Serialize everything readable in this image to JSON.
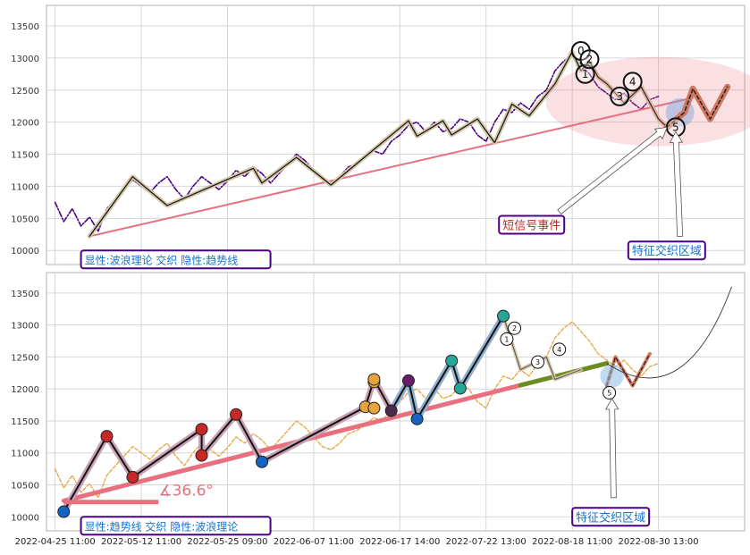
{
  "chart_data": [
    {
      "type": "line",
      "panel": "top",
      "y_ticks": [
        10000,
        10500,
        11000,
        11500,
        12000,
        12500,
        13000,
        13500
      ],
      "ylim": [
        9780,
        13820
      ],
      "grid": true,
      "series": [
        {
          "style": "dash-dot",
          "color": "#4b0082",
          "values": [
            [
              0,
              10750
            ],
            [
              1,
              10450
            ],
            [
              2,
              10650
            ],
            [
              3,
              10380
            ],
            [
              4,
              10520
            ],
            [
              5,
              10300
            ],
            [
              6,
              10650
            ],
            [
              7,
              10800
            ],
            [
              8,
              10950
            ],
            [
              9,
              11100
            ],
            [
              10,
              11000
            ],
            [
              11,
              10900
            ],
            [
              12,
              11050
            ],
            [
              13,
              11150
            ],
            [
              14,
              10950
            ],
            [
              15,
              10800
            ],
            [
              16,
              11000
            ],
            [
              17,
              11150
            ],
            [
              18,
              11050
            ],
            [
              19,
              10950
            ],
            [
              20,
              11080
            ],
            [
              21,
              11250
            ],
            [
              22,
              11150
            ],
            [
              23,
              11300
            ],
            [
              24,
              11200
            ],
            [
              25,
              11050
            ],
            [
              26,
              11200
            ],
            [
              27,
              11350
            ],
            [
              28,
              11500
            ],
            [
              29,
              11400
            ],
            [
              30,
              11250
            ],
            [
              31,
              11100
            ],
            [
              32,
              11050
            ],
            [
              33,
              11150
            ],
            [
              34,
              11300
            ],
            [
              35,
              11350
            ],
            [
              36,
              11450
            ],
            [
              37,
              11550
            ],
            [
              38,
              11500
            ],
            [
              39,
              11700
            ],
            [
              40,
              11800
            ],
            [
              41,
              11950
            ],
            [
              42,
              12000
            ],
            [
              43,
              11850
            ],
            [
              44,
              12000
            ],
            [
              45,
              11850
            ],
            [
              46,
              11900
            ],
            [
              47,
              12050
            ],
            [
              48,
              12000
            ],
            [
              49,
              11800
            ],
            [
              50,
              11700
            ],
            [
              51,
              12000
            ],
            [
              52,
              12200
            ],
            [
              53,
              12150
            ],
            [
              54,
              12300
            ],
            [
              55,
              12200
            ],
            [
              56,
              12400
            ],
            [
              57,
              12500
            ],
            [
              58,
              12800
            ],
            [
              59,
              12950
            ],
            [
              60,
              13050
            ],
            [
              61,
              12900
            ],
            [
              62,
              12750
            ],
            [
              63,
              12550
            ],
            [
              64,
              12450
            ],
            [
              65,
              12350
            ],
            [
              66,
              12450
            ],
            [
              67,
              12300
            ],
            [
              68,
              12200
            ],
            [
              69,
              12350
            ],
            [
              70,
              12400
            ]
          ]
        }
      ],
      "wave_points": [
        [
          4,
          10220
        ],
        [
          9,
          11150
        ],
        [
          13,
          10700
        ],
        [
          23,
          11280
        ],
        [
          24,
          11050
        ],
        [
          28,
          11450
        ],
        [
          32,
          11020
        ],
        [
          41,
          12020
        ],
        [
          42,
          11780
        ],
        [
          45,
          12020
        ],
        [
          46,
          11800
        ],
        [
          49,
          12050
        ],
        [
          51,
          11680
        ],
        [
          53,
          12280
        ],
        [
          55,
          12100
        ],
        [
          58,
          12600
        ],
        [
          60,
          13100
        ],
        [
          61,
          12800
        ],
        [
          62,
          12950
        ],
        [
          63,
          12700
        ],
        [
          64,
          12600
        ],
        [
          66,
          12300
        ],
        [
          68,
          12550
        ],
        [
          70,
          12050
        ],
        [
          71,
          11920
        ],
        [
          73,
          12150
        ],
        [
          74,
          12520
        ],
        [
          76,
          12050
        ],
        [
          78,
          12550
        ]
      ],
      "trend_line": [
        [
          4,
          10220
        ],
        [
          74,
          12380
        ]
      ],
      "wave_labels": [
        {
          "text": "0",
          "x": 61,
          "y": 13110
        },
        {
          "text": "1",
          "x": 61.5,
          "y": 12750
        },
        {
          "text": "2",
          "x": 62,
          "y": 12980
        },
        {
          "text": "3",
          "x": 65.5,
          "y": 12400
        },
        {
          "text": "4",
          "x": 67,
          "y": 12630
        },
        {
          "text": "5",
          "x": 72,
          "y": 11920
        }
      ],
      "annotations": [
        {
          "text": "短信号事件",
          "x": 51.5,
          "y": 10400
        },
        {
          "text": "特征交织区域",
          "x": 66.5,
          "y": 10000
        },
        {
          "text": "显性:波浪理论 交织 隐性:趋势线",
          "x": 3,
          "y": 9860
        }
      ]
    },
    {
      "type": "line",
      "panel": "bottom",
      "x_tick_labels": [
        "2022-04-25 11:00",
        "2022-05-12 11:00",
        "2022-05-25 09:00",
        "2022-06-07 11:00",
        "2022-06-17 14:00",
        "2022-07-22 13:00",
        "2022-08-18 11:00",
        "2022-08-30 13:00"
      ],
      "y_ticks": [
        10000,
        10500,
        11000,
        11500,
        12000,
        12500,
        13000,
        13500
      ],
      "ylim": [
        9780,
        13820
      ],
      "grid": true,
      "series": [
        {
          "style": "dashed",
          "color": "#e8a33d",
          "values": [
            [
              0,
              10750
            ],
            [
              1,
              10450
            ],
            [
              2,
              10650
            ],
            [
              3,
              10380
            ],
            [
              4,
              10520
            ],
            [
              5,
              10300
            ],
            [
              6,
              10650
            ],
            [
              7,
              10800
            ],
            [
              8,
              10950
            ],
            [
              9,
              11100
            ],
            [
              10,
              11000
            ],
            [
              11,
              10900
            ],
            [
              12,
              11050
            ],
            [
              13,
              11150
            ],
            [
              14,
              10950
            ],
            [
              15,
              10800
            ],
            [
              16,
              11000
            ],
            [
              17,
              11150
            ],
            [
              18,
              11050
            ],
            [
              19,
              10950
            ],
            [
              20,
              11080
            ],
            [
              21,
              11250
            ],
            [
              22,
              11150
            ],
            [
              23,
              11300
            ],
            [
              24,
              11200
            ],
            [
              25,
              11050
            ],
            [
              26,
              11200
            ],
            [
              27,
              11350
            ],
            [
              28,
              11500
            ],
            [
              29,
              11400
            ],
            [
              30,
              11250
            ],
            [
              31,
              11100
            ],
            [
              32,
              11050
            ],
            [
              33,
              11150
            ],
            [
              34,
              11300
            ],
            [
              35,
              11350
            ],
            [
              36,
              11450
            ],
            [
              37,
              11550
            ],
            [
              38,
              11500
            ],
            [
              39,
              11700
            ],
            [
              40,
              11800
            ],
            [
              41,
              11950
            ],
            [
              42,
              12000
            ],
            [
              43,
              11850
            ],
            [
              44,
              12000
            ],
            [
              45,
              11850
            ],
            [
              46,
              11900
            ],
            [
              47,
              12050
            ],
            [
              48,
              12000
            ],
            [
              49,
              11800
            ],
            [
              50,
              11700
            ],
            [
              51,
              12000
            ],
            [
              52,
              12200
            ],
            [
              53,
              12150
            ],
            [
              54,
              12300
            ],
            [
              55,
              12200
            ],
            [
              56,
              12400
            ],
            [
              57,
              12500
            ],
            [
              58,
              12800
            ],
            [
              59,
              12950
            ],
            [
              60,
              13050
            ],
            [
              61,
              12900
            ],
            [
              62,
              12750
            ],
            [
              63,
              12550
            ],
            [
              64,
              12450
            ],
            [
              65,
              12350
            ],
            [
              66,
              12450
            ],
            [
              67,
              12300
            ],
            [
              68,
              12200
            ],
            [
              69,
              12350
            ],
            [
              70,
              12400
            ]
          ]
        }
      ],
      "swing_points": [
        [
          1,
          10080,
          "#1565c0"
        ],
        [
          6,
          11260,
          "#c62828"
        ],
        [
          9,
          10620,
          "#c62828"
        ],
        [
          17,
          11370,
          "#c62828"
        ],
        [
          17,
          10960,
          "#c62828"
        ],
        [
          21,
          11600,
          "#c62828"
        ],
        [
          24,
          10860,
          "#1565c0"
        ],
        [
          36,
          11720,
          "#e8a33d"
        ],
        [
          37,
          11700,
          "#e8a33d"
        ],
        [
          37,
          12110,
          "#e8a33d"
        ],
        [
          37,
          12150,
          "#e8a33d"
        ],
        [
          39,
          11660,
          "#4a2c4a"
        ],
        [
          41,
          12130,
          "#6a1b6a"
        ],
        [
          42,
          11530,
          "#1565c0"
        ],
        [
          46,
          12440,
          "#26a69a"
        ],
        [
          47,
          12010,
          "#26a69a"
        ],
        [
          52,
          13140,
          "#26a69a"
        ]
      ],
      "wave_points": [
        [
          1,
          10080
        ],
        [
          6,
          11260
        ],
        [
          9,
          10620
        ],
        [
          17,
          11370
        ],
        [
          17,
          10960
        ],
        [
          21,
          11600
        ],
        [
          24,
          10860
        ],
        [
          36,
          11720
        ],
        [
          37,
          12150
        ],
        [
          39,
          11660
        ],
        [
          41,
          12130
        ],
        [
          42,
          11530
        ],
        [
          46,
          12440
        ],
        [
          47,
          12010
        ],
        [
          52,
          13140
        ],
        [
          54,
          12300
        ],
        [
          57,
          12500
        ],
        [
          58,
          12150
        ],
        [
          61,
          12300
        ],
        [
          62,
          12300
        ],
        [
          64,
          12050
        ],
        [
          65,
          12500
        ],
        [
          67,
          12050
        ],
        [
          69,
          12550
        ]
      ],
      "trend_line": [
        [
          1,
          10250
        ],
        [
          64,
          12400
        ]
      ],
      "angle_label": "∡36.6°",
      "wave_labels": [
        {
          "text": "1",
          "x": 52.4,
          "y": 12780
        },
        {
          "text": "2",
          "x": 53.3,
          "y": 12950
        },
        {
          "text": "3",
          "x": 56,
          "y": 12420
        },
        {
          "text": "4",
          "x": 58.5,
          "y": 12620
        },
        {
          "text": "5",
          "x": 64.3,
          "y": 11940
        }
      ],
      "annotations": [
        {
          "text": "特征交织区域",
          "x": 60,
          "y": 10000
        },
        {
          "text": "显性:趋势线 交织 隐性:波浪理论",
          "x": 3,
          "y": 9860
        }
      ]
    }
  ]
}
